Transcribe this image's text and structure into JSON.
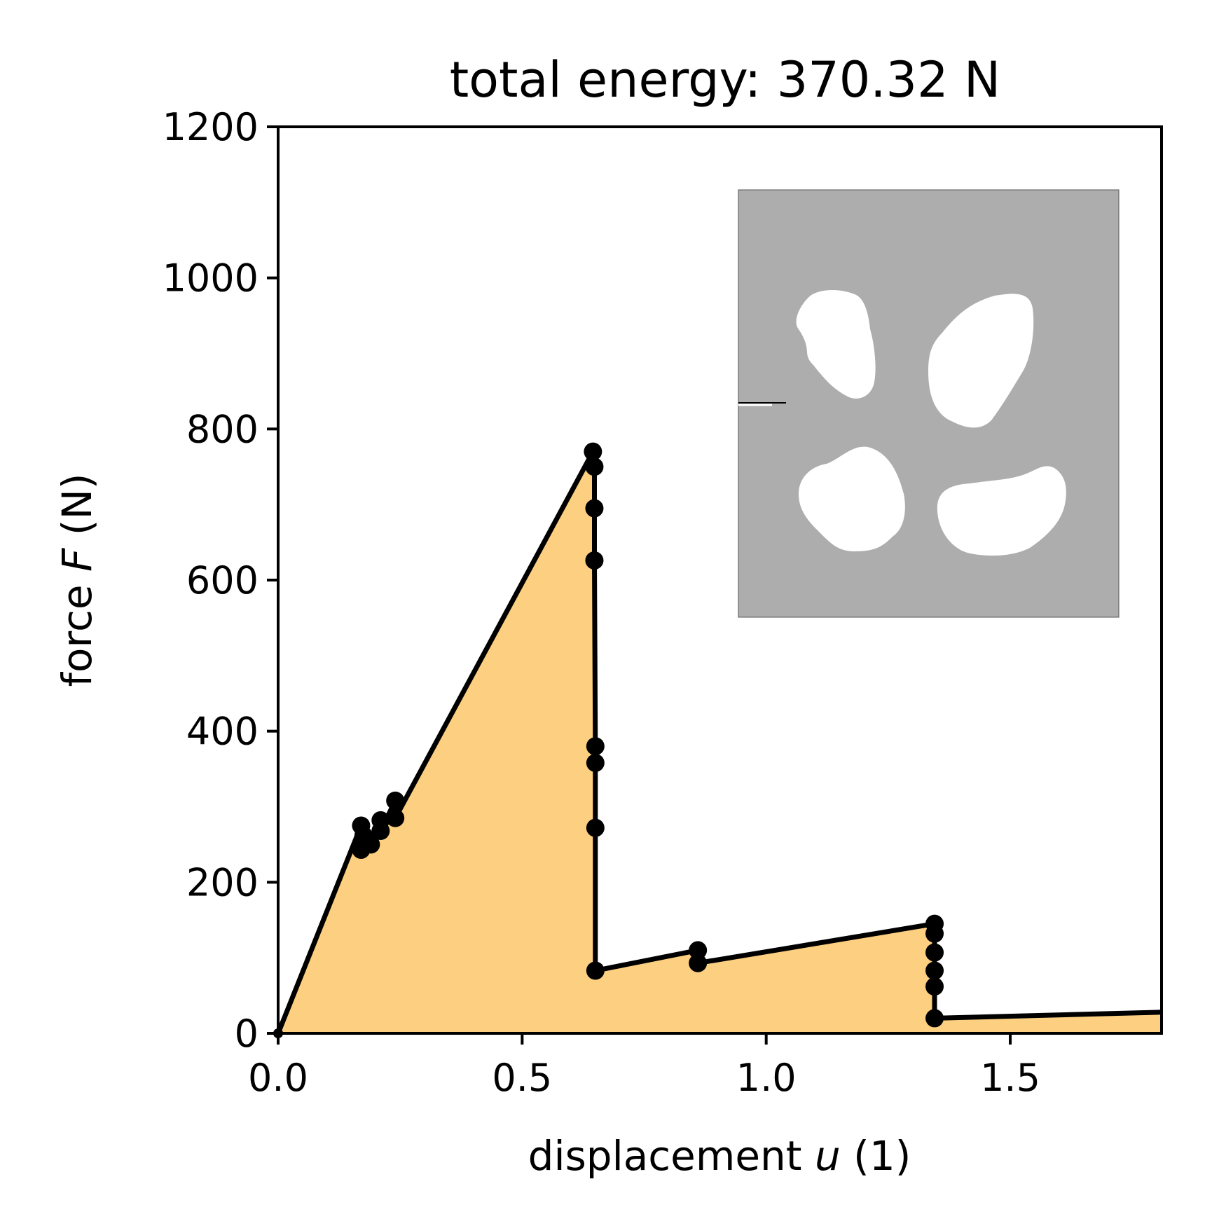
{
  "chart_data": {
    "type": "area",
    "title": "total energy: 370.32 N",
    "xlabel": {
      "prefix": "displacement ",
      "var": "u",
      "suffix": " (1)"
    },
    "ylabel": {
      "prefix": "force ",
      "var": "F",
      "suffix": " (N)"
    },
    "xlim": [
      0,
      1.81
    ],
    "ylim": [
      0,
      1200
    ],
    "xticks": [
      "0.0",
      "0.5",
      "1.0",
      "1.5"
    ],
    "xtick_values": [
      0,
      0.5,
      1.0,
      1.5
    ],
    "yticks": [
      "0",
      "200",
      "400",
      "600",
      "800",
      "1000",
      "1200"
    ],
    "ytick_values": [
      0,
      200,
      400,
      600,
      800,
      1000,
      1200
    ],
    "grid": false,
    "fill_color": "#fdcf80",
    "line_color": "#000000",
    "series": [
      {
        "x": [
          0.0,
          0.17,
          0.17,
          0.175,
          0.19,
          0.21,
          0.21,
          0.24,
          0.24,
          0.645,
          0.648,
          0.648,
          0.648,
          0.65,
          0.65,
          0.65,
          0.65,
          0.86,
          0.86,
          1.345,
          1.345,
          1.345,
          1.345,
          1.345,
          1.345,
          1.81
        ],
        "y": [
          0,
          275,
          243,
          262,
          250,
          282,
          268,
          308,
          285,
          770,
          750,
          695,
          626,
          380,
          358,
          272,
          83,
          110,
          93,
          145,
          132,
          107,
          83,
          62,
          20,
          28
        ]
      }
    ],
    "inset": {
      "type": "topology-image",
      "material_color": "#adadad",
      "void_color": "#ffffff"
    }
  }
}
